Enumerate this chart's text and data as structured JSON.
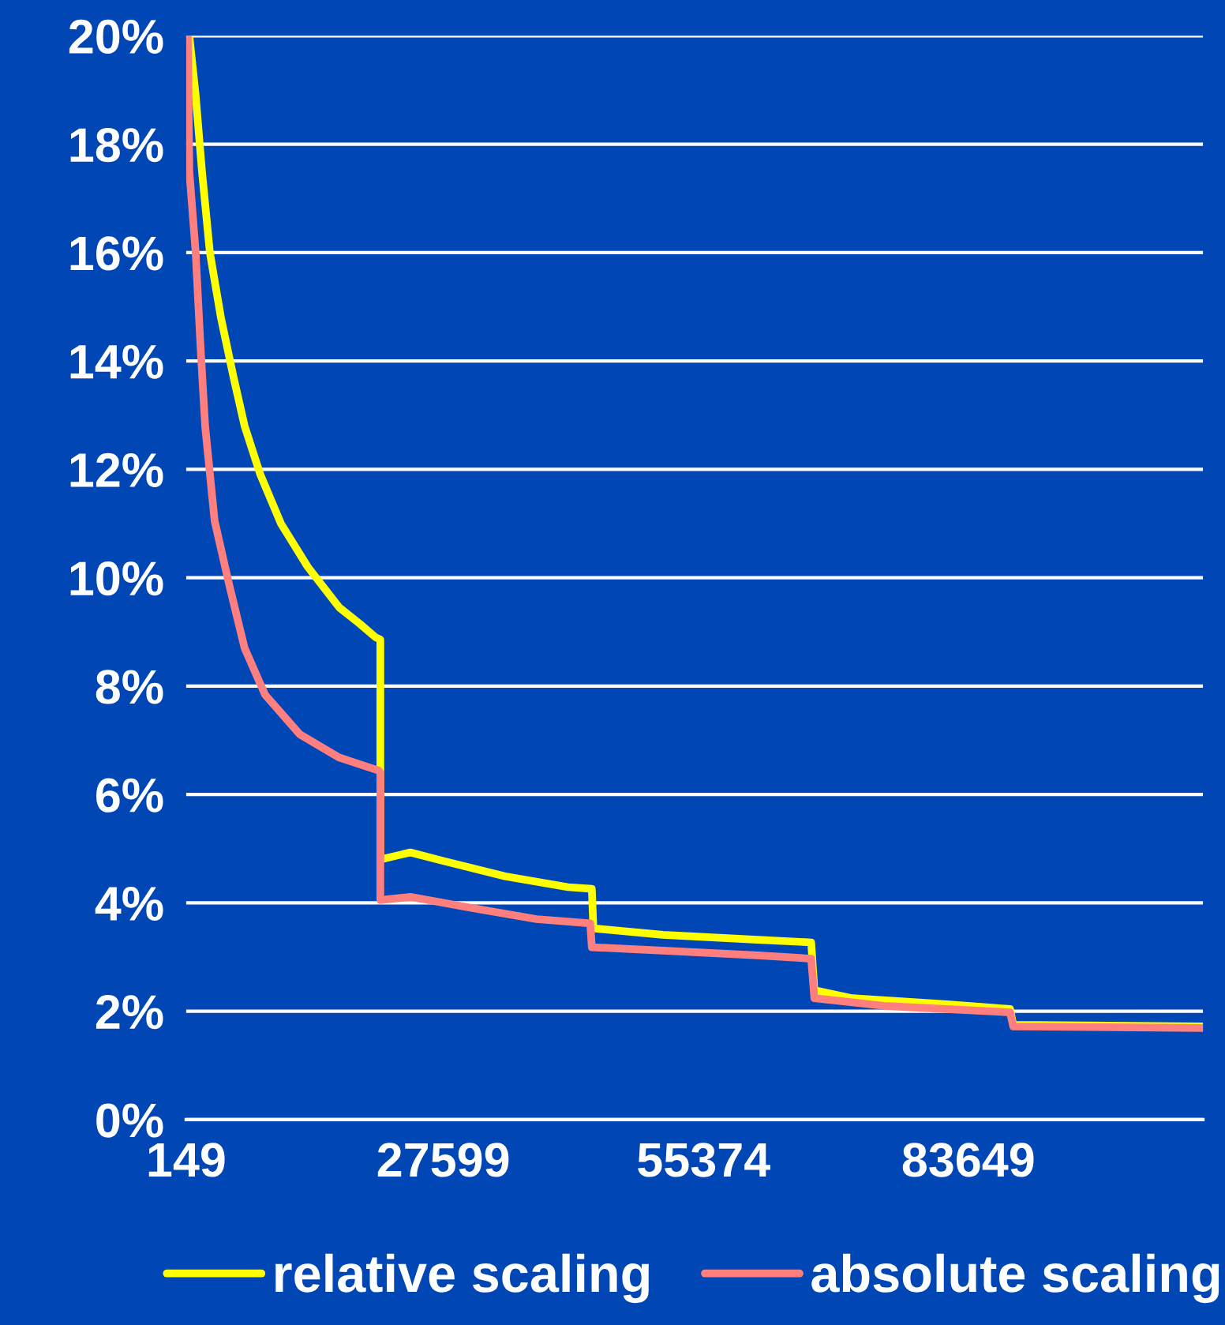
{
  "chart_data": {
    "type": "line",
    "xlim": [
      149,
      108700
    ],
    "xticks": [
      149,
      27599,
      55374,
      83649
    ],
    "ylim": [
      0,
      20
    ],
    "yticks": [
      {
        "value": 0,
        "label": "0%"
      },
      {
        "value": 2,
        "label": "2%"
      },
      {
        "value": 4,
        "label": "4%"
      },
      {
        "value": 6,
        "label": "6%"
      },
      {
        "value": 8,
        "label": "8%"
      },
      {
        "value": 10,
        "label": "10%"
      },
      {
        "value": 12,
        "label": "12%"
      },
      {
        "value": 14,
        "label": "14%"
      },
      {
        "value": 16,
        "label": "16%"
      },
      {
        "value": 18,
        "label": "18%"
      },
      {
        "value": 20,
        "label": "20%"
      }
    ],
    "grid": "y",
    "legend": "bottom",
    "marker": "none",
    "line_style": "solid",
    "series": [
      {
        "name": "relative scaling",
        "color": "#ffff00",
        "x": [
          486,
          1160,
          1834,
          2677,
          3856,
          5204,
          6384,
          8069,
          10259,
          13124,
          16494,
          18684,
          20369,
          20875,
          20875,
          24077,
          27446,
          34186,
          40926,
          43454,
          43622,
          51037,
          61147,
          66876,
          67213,
          71257,
          81367,
          88107,
          88444,
          108663
        ],
        "values": [
          20,
          18.9,
          17.5,
          16.0,
          14.8,
          13.7,
          12.8,
          11.9,
          11.0,
          10.2,
          9.45,
          9.15,
          8.9,
          8.86,
          4.8,
          4.93,
          4.78,
          4.49,
          4.29,
          4.26,
          3.53,
          3.41,
          3.32,
          3.27,
          2.39,
          2.24,
          2.13,
          2.04,
          1.75,
          1.72
        ]
      },
      {
        "name": "absolute scaling",
        "color": "#ff7f7f",
        "x": [
          317,
          486,
          1160,
          1666,
          2171,
          3182,
          4699,
          6384,
          8574,
          12281,
          16494,
          20706,
          20875,
          20875,
          24077,
          30816,
          37556,
          43285,
          43454,
          51037,
          61147,
          66876,
          67213,
          74627,
          88107,
          88444,
          108663
        ],
        "values": [
          20,
          17.5,
          16.0,
          14.3,
          12.8,
          11.05,
          9.9,
          8.7,
          7.84,
          7.11,
          6.68,
          6.44,
          6.4,
          4.05,
          4.11,
          3.9,
          3.7,
          3.62,
          3.18,
          3.12,
          3.03,
          2.97,
          2.24,
          2.1,
          1.98,
          1.72,
          1.69
        ]
      }
    ]
  }
}
